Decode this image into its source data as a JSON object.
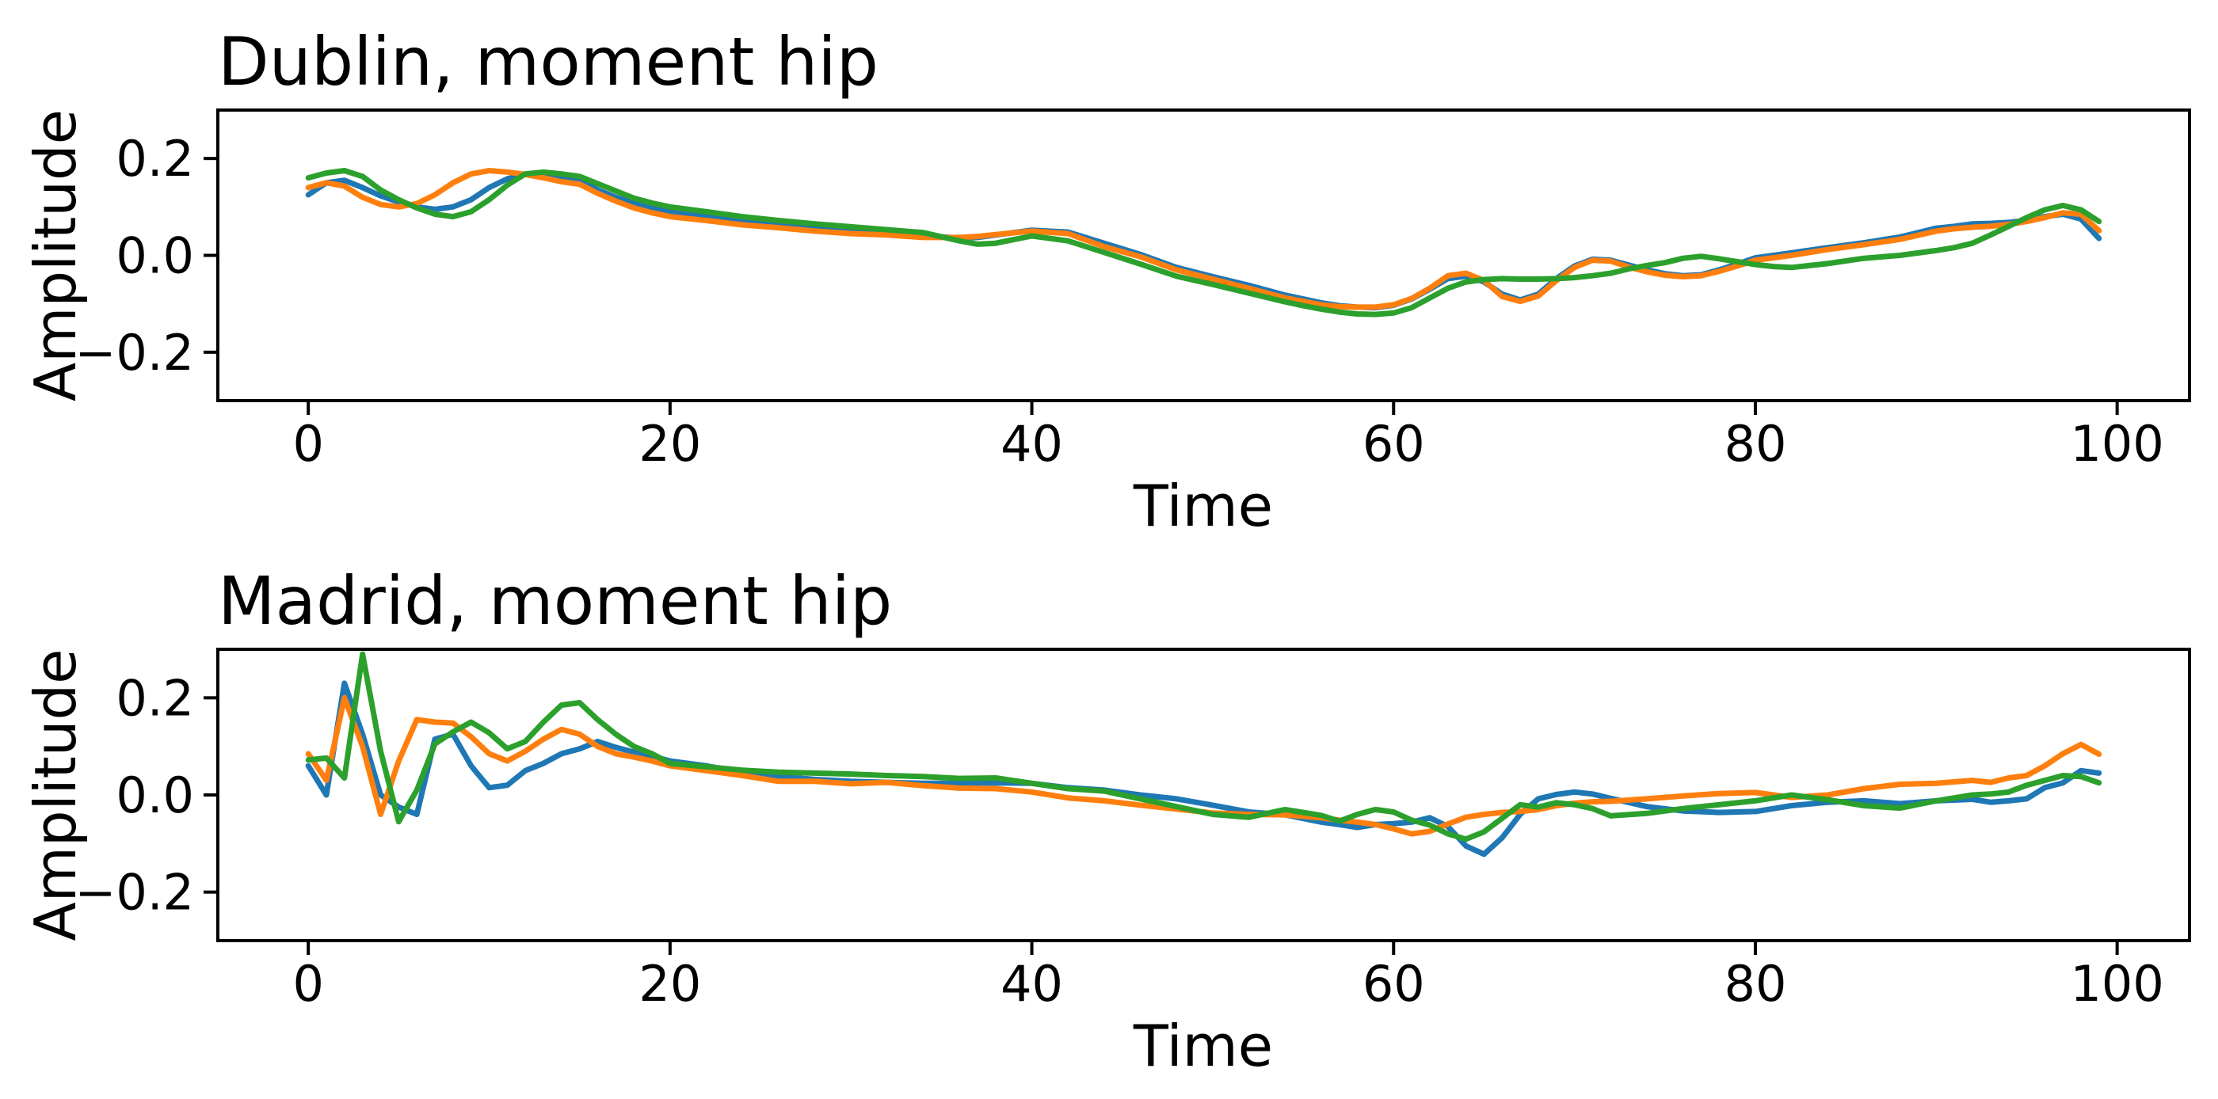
{
  "figure": {
    "background": "#ffffff",
    "axis_color": "#000000",
    "series_colors": [
      "#1f77b4",
      "#ff7f0e",
      "#2ca02c"
    ]
  },
  "chart_data": [
    {
      "type": "line",
      "title": "Dublin, moment hip",
      "xlabel": "Time",
      "ylabel": "Amplitude",
      "xlim": [
        -5,
        104
      ],
      "ylim": [
        -0.3,
        0.3
      ],
      "xticks": [
        0,
        20,
        40,
        60,
        80,
        100
      ],
      "ytick_values": [
        0.2,
        0.0,
        -0.2
      ],
      "ytick_labels": [
        "0.2",
        "0.0",
        "−0.2"
      ],
      "grid": false,
      "legend": "none",
      "x": [
        0,
        1,
        2,
        3,
        4,
        5,
        6,
        7,
        8,
        9,
        10,
        11,
        12,
        13,
        14,
        15,
        16,
        17,
        18,
        19,
        20,
        22,
        24,
        26,
        28,
        30,
        32,
        34,
        36,
        37,
        38,
        40,
        42,
        44,
        46,
        48,
        50,
        52,
        54,
        55,
        56,
        57,
        58,
        59,
        60,
        61,
        62,
        63,
        64,
        65,
        66,
        67,
        68,
        69,
        70,
        71,
        72,
        73,
        74,
        75,
        76,
        77,
        78,
        79,
        80,
        81,
        82,
        84,
        86,
        88,
        90,
        91,
        92,
        93,
        94,
        95,
        96,
        97,
        98,
        99
      ],
      "series": [
        {
          "color": "#1f77b4",
          "values": [
            0.125,
            0.15,
            0.155,
            0.14,
            0.123,
            0.11,
            0.1,
            0.095,
            0.1,
            0.115,
            0.14,
            0.158,
            0.168,
            0.165,
            0.16,
            0.155,
            0.135,
            0.12,
            0.108,
            0.098,
            0.09,
            0.08,
            0.07,
            0.062,
            0.056,
            0.051,
            0.046,
            0.04,
            0.036,
            0.037,
            0.042,
            0.052,
            0.048,
            0.025,
            0.002,
            -0.025,
            -0.044,
            -0.062,
            -0.082,
            -0.09,
            -0.098,
            -0.104,
            -0.107,
            -0.108,
            -0.103,
            -0.09,
            -0.07,
            -0.048,
            -0.043,
            -0.055,
            -0.08,
            -0.092,
            -0.08,
            -0.048,
            -0.022,
            -0.008,
            -0.01,
            -0.02,
            -0.03,
            -0.038,
            -0.042,
            -0.04,
            -0.03,
            -0.018,
            -0.005,
            0.0,
            0.005,
            0.016,
            0.026,
            0.038,
            0.056,
            0.06,
            0.065,
            0.066,
            0.068,
            0.072,
            0.08,
            0.085,
            0.075,
            0.035
          ]
        },
        {
          "color": "#ff7f0e",
          "values": [
            0.14,
            0.15,
            0.143,
            0.12,
            0.105,
            0.1,
            0.107,
            0.125,
            0.15,
            0.168,
            0.175,
            0.172,
            0.167,
            0.16,
            0.152,
            0.147,
            0.128,
            0.112,
            0.098,
            0.088,
            0.08,
            0.072,
            0.063,
            0.057,
            0.05,
            0.045,
            0.042,
            0.037,
            0.037,
            0.039,
            0.043,
            0.05,
            0.045,
            0.018,
            -0.003,
            -0.03,
            -0.049,
            -0.068,
            -0.088,
            -0.095,
            -0.102,
            -0.106,
            -0.107,
            -0.107,
            -0.102,
            -0.089,
            -0.068,
            -0.042,
            -0.037,
            -0.052,
            -0.085,
            -0.095,
            -0.084,
            -0.052,
            -0.025,
            -0.01,
            -0.012,
            -0.024,
            -0.034,
            -0.041,
            -0.044,
            -0.042,
            -0.033,
            -0.022,
            -0.01,
            -0.005,
            0.0,
            0.012,
            0.022,
            0.033,
            0.05,
            0.055,
            0.058,
            0.06,
            0.064,
            0.07,
            0.078,
            0.088,
            0.085,
            0.051
          ]
        },
        {
          "color": "#2ca02c",
          "values": [
            0.16,
            0.17,
            0.175,
            0.163,
            0.135,
            0.115,
            0.098,
            0.085,
            0.08,
            0.09,
            0.115,
            0.145,
            0.168,
            0.172,
            0.168,
            0.163,
            0.148,
            0.133,
            0.118,
            0.108,
            0.1,
            0.09,
            0.08,
            0.072,
            0.065,
            0.059,
            0.053,
            0.047,
            0.03,
            0.023,
            0.025,
            0.04,
            0.03,
            0.006,
            -0.018,
            -0.043,
            -0.06,
            -0.078,
            -0.096,
            -0.104,
            -0.111,
            -0.117,
            -0.121,
            -0.122,
            -0.119,
            -0.108,
            -0.088,
            -0.068,
            -0.055,
            -0.05,
            -0.048,
            -0.049,
            -0.049,
            -0.048,
            -0.046,
            -0.042,
            -0.037,
            -0.028,
            -0.021,
            -0.015,
            -0.006,
            -0.002,
            -0.007,
            -0.013,
            -0.019,
            -0.023,
            -0.025,
            -0.017,
            -0.006,
            0.0,
            0.01,
            0.016,
            0.025,
            0.042,
            0.06,
            0.078,
            0.094,
            0.103,
            0.094,
            0.07
          ]
        }
      ]
    },
    {
      "type": "line",
      "title": "Madrid, moment hip",
      "xlabel": "Time",
      "ylabel": "Amplitude",
      "xlim": [
        -5,
        104
      ],
      "ylim": [
        -0.3,
        0.3
      ],
      "xticks": [
        0,
        20,
        40,
        60,
        80,
        100
      ],
      "ytick_values": [
        0.2,
        0.0,
        -0.2
      ],
      "ytick_labels": [
        "0.2",
        "0.0",
        "−0.2"
      ],
      "grid": false,
      "legend": "none",
      "x": [
        0,
        1,
        2,
        3,
        4,
        5,
        6,
        7,
        8,
        9,
        10,
        11,
        12,
        13,
        14,
        15,
        16,
        17,
        18,
        19,
        20,
        22,
        24,
        26,
        28,
        30,
        32,
        34,
        36,
        38,
        40,
        42,
        44,
        46,
        48,
        50,
        52,
        54,
        56,
        57,
        58,
        59,
        60,
        61,
        62,
        63,
        64,
        65,
        66,
        67,
        68,
        69,
        70,
        71,
        72,
        74,
        76,
        78,
        80,
        82,
        84,
        86,
        88,
        90,
        92,
        93,
        94,
        95,
        96,
        97,
        98,
        99
      ],
      "series": [
        {
          "color": "#1f77b4",
          "values": [
            0.06,
            0.0,
            0.23,
            0.125,
            0.0,
            -0.025,
            -0.04,
            0.115,
            0.125,
            0.06,
            0.015,
            0.02,
            0.05,
            0.065,
            0.085,
            0.095,
            0.11,
            0.098,
            0.088,
            0.08,
            0.07,
            0.06,
            0.046,
            0.038,
            0.032,
            0.028,
            0.026,
            0.024,
            0.024,
            0.025,
            0.024,
            0.015,
            0.01,
            0.0,
            -0.008,
            -0.021,
            -0.035,
            -0.041,
            -0.056,
            -0.061,
            -0.067,
            -0.061,
            -0.059,
            -0.056,
            -0.047,
            -0.065,
            -0.105,
            -0.122,
            -0.088,
            -0.04,
            -0.008,
            0.001,
            0.006,
            0.002,
            -0.007,
            -0.024,
            -0.033,
            -0.036,
            -0.034,
            -0.022,
            -0.015,
            -0.012,
            -0.018,
            -0.012,
            -0.009,
            -0.015,
            -0.012,
            -0.008,
            0.015,
            0.025,
            0.05,
            0.045
          ]
        },
        {
          "color": "#ff7f0e",
          "values": [
            0.085,
            0.03,
            0.2,
            0.1,
            -0.04,
            0.07,
            0.155,
            0.15,
            0.148,
            0.12,
            0.085,
            0.07,
            0.09,
            0.115,
            0.135,
            0.125,
            0.1,
            0.085,
            0.078,
            0.07,
            0.06,
            0.05,
            0.04,
            0.028,
            0.028,
            0.023,
            0.026,
            0.019,
            0.014,
            0.013,
            0.006,
            -0.006,
            -0.012,
            -0.021,
            -0.029,
            -0.037,
            -0.04,
            -0.041,
            -0.047,
            -0.052,
            -0.056,
            -0.061,
            -0.07,
            -0.08,
            -0.075,
            -0.06,
            -0.046,
            -0.04,
            -0.036,
            -0.034,
            -0.03,
            -0.022,
            -0.017,
            -0.014,
            -0.013,
            -0.008,
            -0.002,
            0.003,
            0.005,
            -0.005,
            0.0,
            0.013,
            0.022,
            0.024,
            0.03,
            0.026,
            0.035,
            0.04,
            0.06,
            0.085,
            0.104,
            0.084
          ]
        },
        {
          "color": "#2ca02c",
          "values": [
            0.072,
            0.076,
            0.035,
            0.29,
            0.09,
            -0.055,
            0.01,
            0.105,
            0.13,
            0.15,
            0.128,
            0.095,
            0.11,
            0.15,
            0.185,
            0.19,
            0.155,
            0.125,
            0.1,
            0.085,
            0.065,
            0.058,
            0.051,
            0.047,
            0.045,
            0.043,
            0.04,
            0.038,
            0.034,
            0.035,
            0.024,
            0.013,
            0.008,
            -0.008,
            -0.024,
            -0.04,
            -0.046,
            -0.03,
            -0.042,
            -0.054,
            -0.04,
            -0.03,
            -0.035,
            -0.052,
            -0.062,
            -0.08,
            -0.091,
            -0.076,
            -0.048,
            -0.02,
            -0.025,
            -0.016,
            -0.02,
            -0.028,
            -0.043,
            -0.038,
            -0.028,
            -0.02,
            -0.012,
            0.0,
            -0.01,
            -0.022,
            -0.027,
            -0.012,
            0.0,
            0.002,
            0.006,
            0.02,
            0.03,
            0.04,
            0.038,
            0.025
          ]
        }
      ]
    }
  ]
}
